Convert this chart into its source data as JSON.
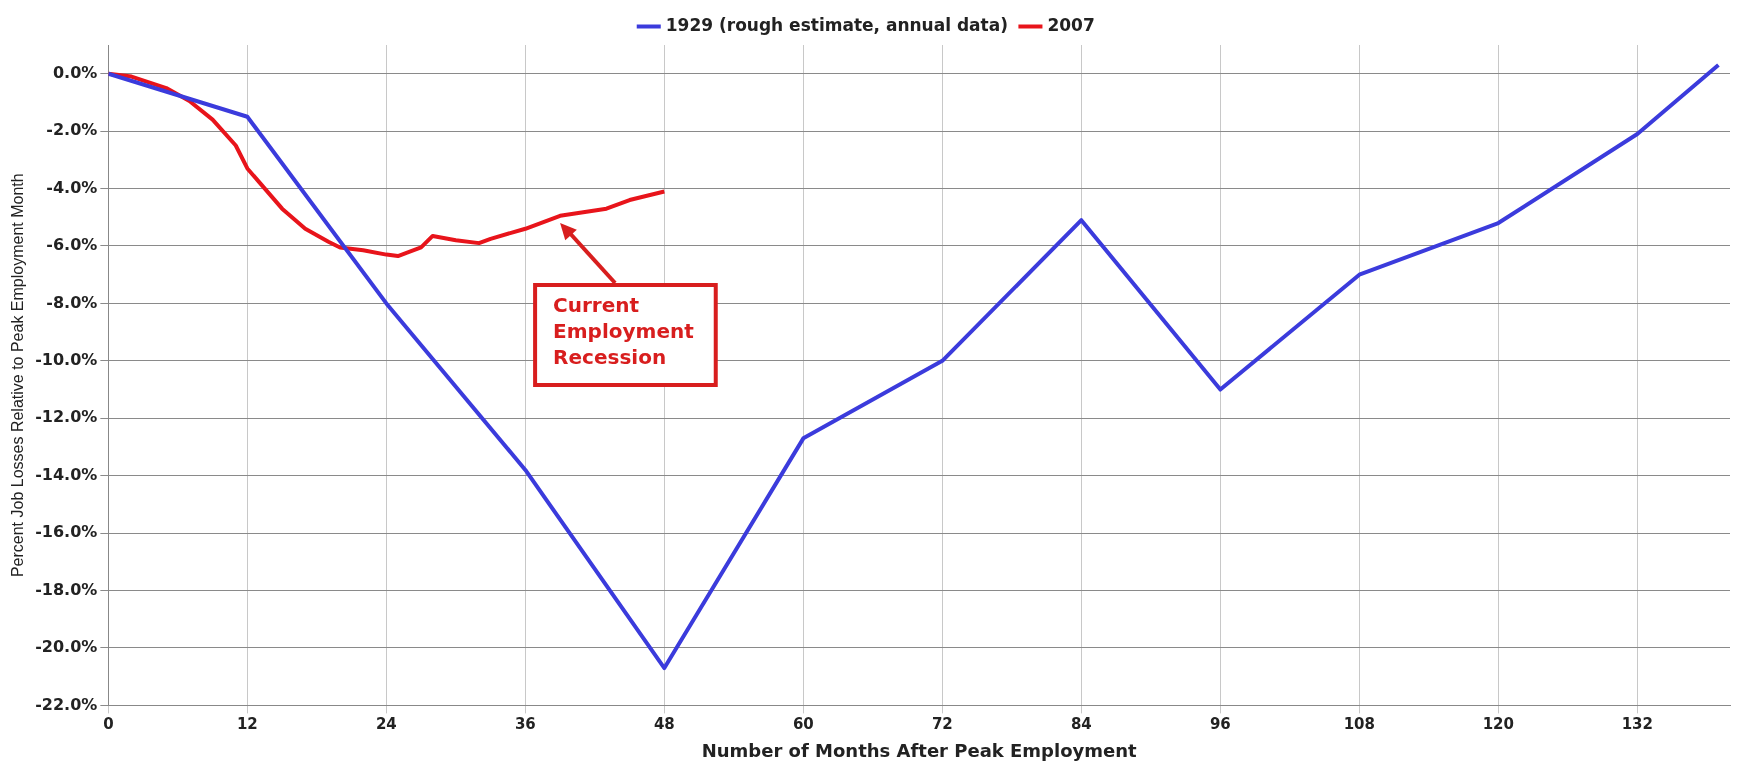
{
  "chart_data": {
    "type": "line",
    "xlabel": "Number of Months After Peak Employment",
    "ylabel": "Percent Job Losses Relative to Peak Employment Month",
    "xlim": [
      0,
      140
    ],
    "xticks": [
      0,
      12,
      24,
      36,
      48,
      60,
      72,
      84,
      96,
      108,
      120,
      132
    ],
    "ylim": [
      -22,
      1
    ],
    "yticks": [
      {
        "value": 0,
        "label": "0.0%"
      },
      {
        "value": -2,
        "label": "-2.0%"
      },
      {
        "value": -4,
        "label": "-4.0%"
      },
      {
        "value": -6,
        "label": "-6.0%"
      },
      {
        "value": -8,
        "label": "-8.0%"
      },
      {
        "value": -10,
        "label": "-10.0%"
      },
      {
        "value": -12,
        "label": "-12.0%"
      },
      {
        "value": -14,
        "label": "-14.0%"
      },
      {
        "value": -16,
        "label": "-16.0%"
      },
      {
        "value": -18,
        "label": "-18.0%"
      },
      {
        "value": -20,
        "label": "-20.0%"
      },
      {
        "value": -22,
        "label": "-22.0%"
      }
    ],
    "grid": true,
    "legend": "top",
    "marker": "none",
    "line_style": "solid",
    "series": [
      {
        "name": "1929 (rough estimate, annual data)",
        "color": "#3b3bdc",
        "x": [
          0,
          12,
          24,
          36,
          48,
          60,
          72,
          84,
          96,
          108,
          120,
          132,
          139
        ],
        "values": [
          0,
          -1.5,
          -8,
          -13.8,
          -20.7,
          -12.7,
          -10,
          -5.1,
          -11,
          -7,
          -5.2,
          -2.1,
          0.3
        ]
      },
      {
        "name": "2007",
        "color": "#e8141b",
        "x": [
          0,
          2,
          5,
          7,
          9,
          11,
          12,
          15,
          17,
          19,
          20,
          22,
          24,
          25,
          27,
          28,
          30,
          32,
          33,
          36,
          39,
          43,
          45,
          48
        ],
        "values": [
          0,
          -0.1,
          -0.5,
          -0.95,
          -1.6,
          -2.5,
          -3.3,
          -4.7,
          -5.4,
          -5.85,
          -6.05,
          -6.15,
          -6.3,
          -6.35,
          -6.05,
          -5.65,
          -5.8,
          -5.9,
          -5.75,
          -5.4,
          -4.95,
          -4.7,
          -4.4,
          -4.1
        ]
      }
    ],
    "annotations": [
      {
        "text": "Current Employment Recession",
        "x": 39,
        "y": -5.2
      }
    ]
  }
}
